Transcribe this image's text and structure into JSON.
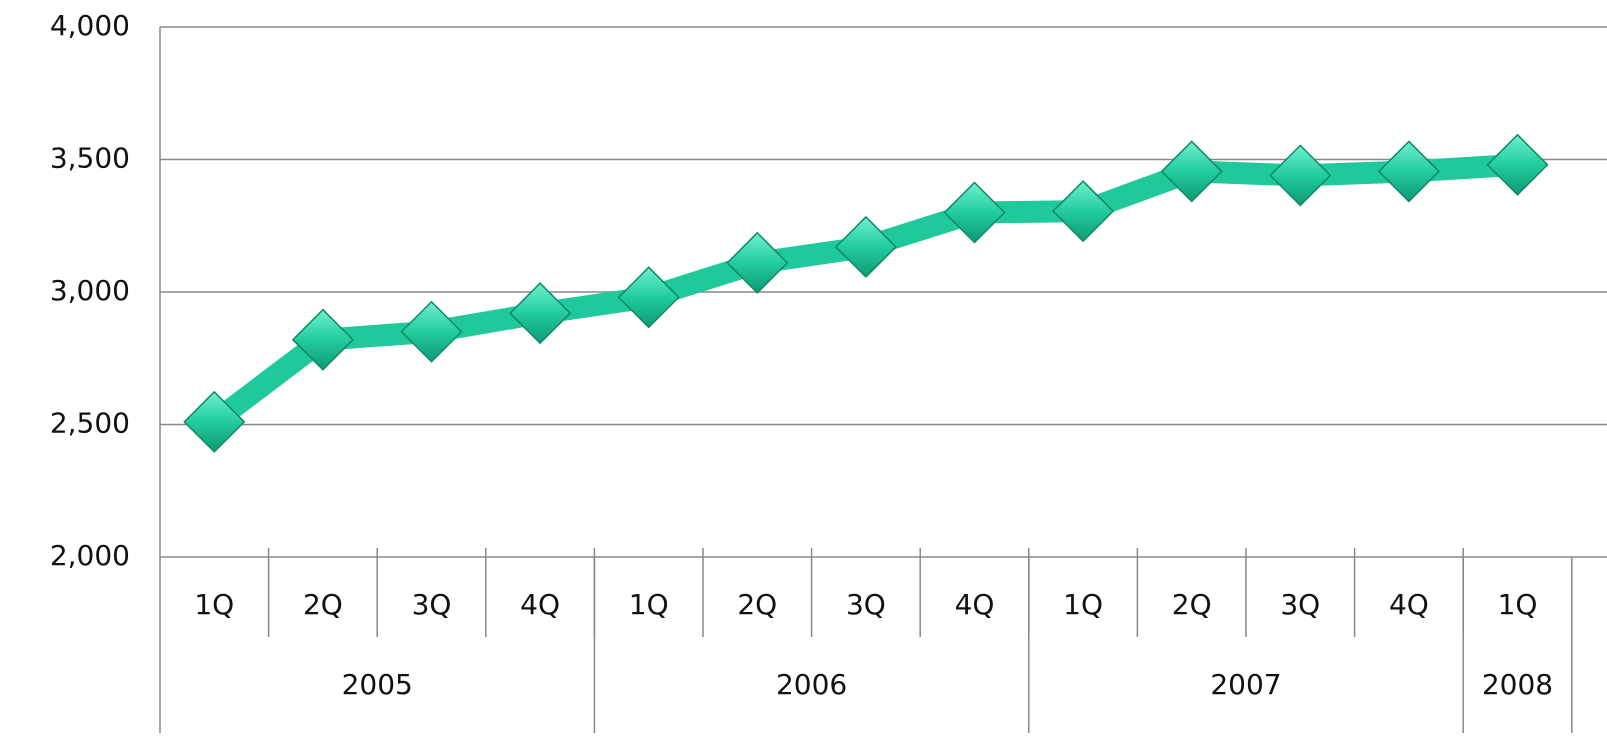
{
  "chart_data": {
    "type": "line",
    "categories": [
      "1Q",
      "2Q",
      "3Q",
      "4Q",
      "1Q",
      "2Q",
      "3Q",
      "4Q",
      "1Q",
      "2Q",
      "3Q",
      "4Q",
      "1Q"
    ],
    "groups": [
      {
        "label": "2005",
        "count": 4
      },
      {
        "label": "2006",
        "count": 4
      },
      {
        "label": "2007",
        "count": 4
      },
      {
        "label": "2008",
        "count": 1
      }
    ],
    "series": [
      {
        "color": "#1fc99b",
        "values": [
          2510,
          2820,
          2850,
          2920,
          2980,
          3110,
          3170,
          3300,
          3305,
          3455,
          3440,
          3455,
          3480
        ]
      }
    ],
    "ylim": [
      2000,
      4000
    ],
    "yticks": [
      {
        "value": 2000,
        "label": "2,000"
      },
      {
        "value": 2500,
        "label": "2,500"
      },
      {
        "value": 3000,
        "label": "3,000"
      },
      {
        "value": 3500,
        "label": "3,500"
      },
      {
        "value": 4000,
        "label": "4,000"
      }
    ],
    "grid": true
  }
}
